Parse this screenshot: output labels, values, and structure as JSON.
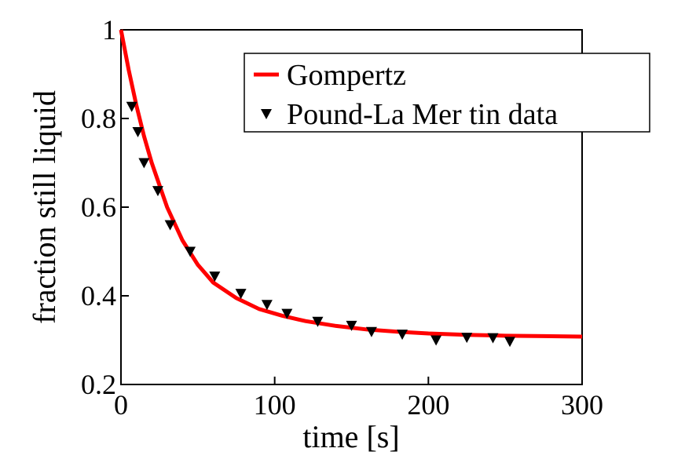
{
  "chart_data": {
    "type": "line",
    "x_label": "time [s]",
    "y_label": "fraction still liquid",
    "xlim": [
      0,
      300
    ],
    "xticks": [
      0,
      100,
      200,
      300
    ],
    "ylim": [
      0.2,
      1
    ],
    "yticks": [
      0.2,
      0.4,
      0.6,
      0.8,
      1
    ],
    "legend": "upper right",
    "series": [
      {
        "name": "Gompertz",
        "type": "line",
        "color": "#ff0000",
        "x": [
          0,
          5,
          10,
          15,
          20,
          30,
          40,
          50,
          60,
          75,
          90,
          105,
          120,
          140,
          160,
          180,
          200,
          225,
          250,
          275,
          300
        ],
        "values": [
          1,
          0.91,
          0.83,
          0.76,
          0.7,
          0.6,
          0.525,
          0.47,
          0.43,
          0.395,
          0.37,
          0.355,
          0.343,
          0.332,
          0.324,
          0.319,
          0.315,
          0.312,
          0.31,
          0.309,
          0.308
        ]
      },
      {
        "name": "Pound-La Mer tin data",
        "type": "scatter",
        "color": "#000000",
        "x": [
          7,
          11,
          15,
          24,
          32,
          45,
          61,
          78,
          95,
          108,
          128,
          150,
          163,
          183,
          205,
          225,
          242,
          253
        ],
        "values": [
          0.827,
          0.77,
          0.7,
          0.637,
          0.56,
          0.5,
          0.444,
          0.405,
          0.38,
          0.36,
          0.342,
          0.333,
          0.319,
          0.313,
          0.3,
          0.306,
          0.305,
          0.297
        ]
      }
    ]
  }
}
